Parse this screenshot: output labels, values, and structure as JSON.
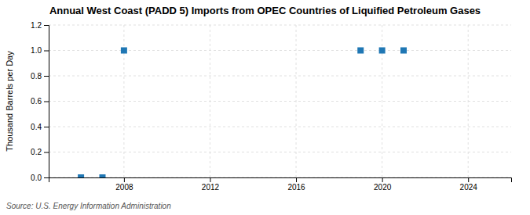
{
  "chart_data": {
    "type": "scatter",
    "title": "Annual West Coast (PADD 5) Imports from OPEC Countries of Liquified Petroleum Gases",
    "ylabel": "Thousand Barrels per Day",
    "annotations": [
      "Source: U.S. Energy Information Administration"
    ],
    "x": [
      2006,
      2007,
      2008,
      2019,
      2020,
      2021
    ],
    "values": [
      0.0,
      0.0,
      1.0,
      1.0,
      1.0,
      1.0
    ],
    "marker": "square",
    "xlim": [
      2004.5,
      2026
    ],
    "ylim": [
      0.0,
      1.2
    ],
    "xticks": [
      2008,
      2012,
      2016,
      2020,
      2024
    ],
    "yticks": [
      {
        "value": 0.0,
        "label": "0.0"
      },
      {
        "value": 0.2,
        "label": "0.2"
      },
      {
        "value": 0.4,
        "label": "0.4"
      },
      {
        "value": 0.6,
        "label": "0.6"
      },
      {
        "value": 0.8,
        "label": "0.8"
      },
      {
        "value": 1.0,
        "label": "1.0"
      },
      {
        "value": 1.2,
        "label": "1.2"
      }
    ],
    "grid": true
  }
}
